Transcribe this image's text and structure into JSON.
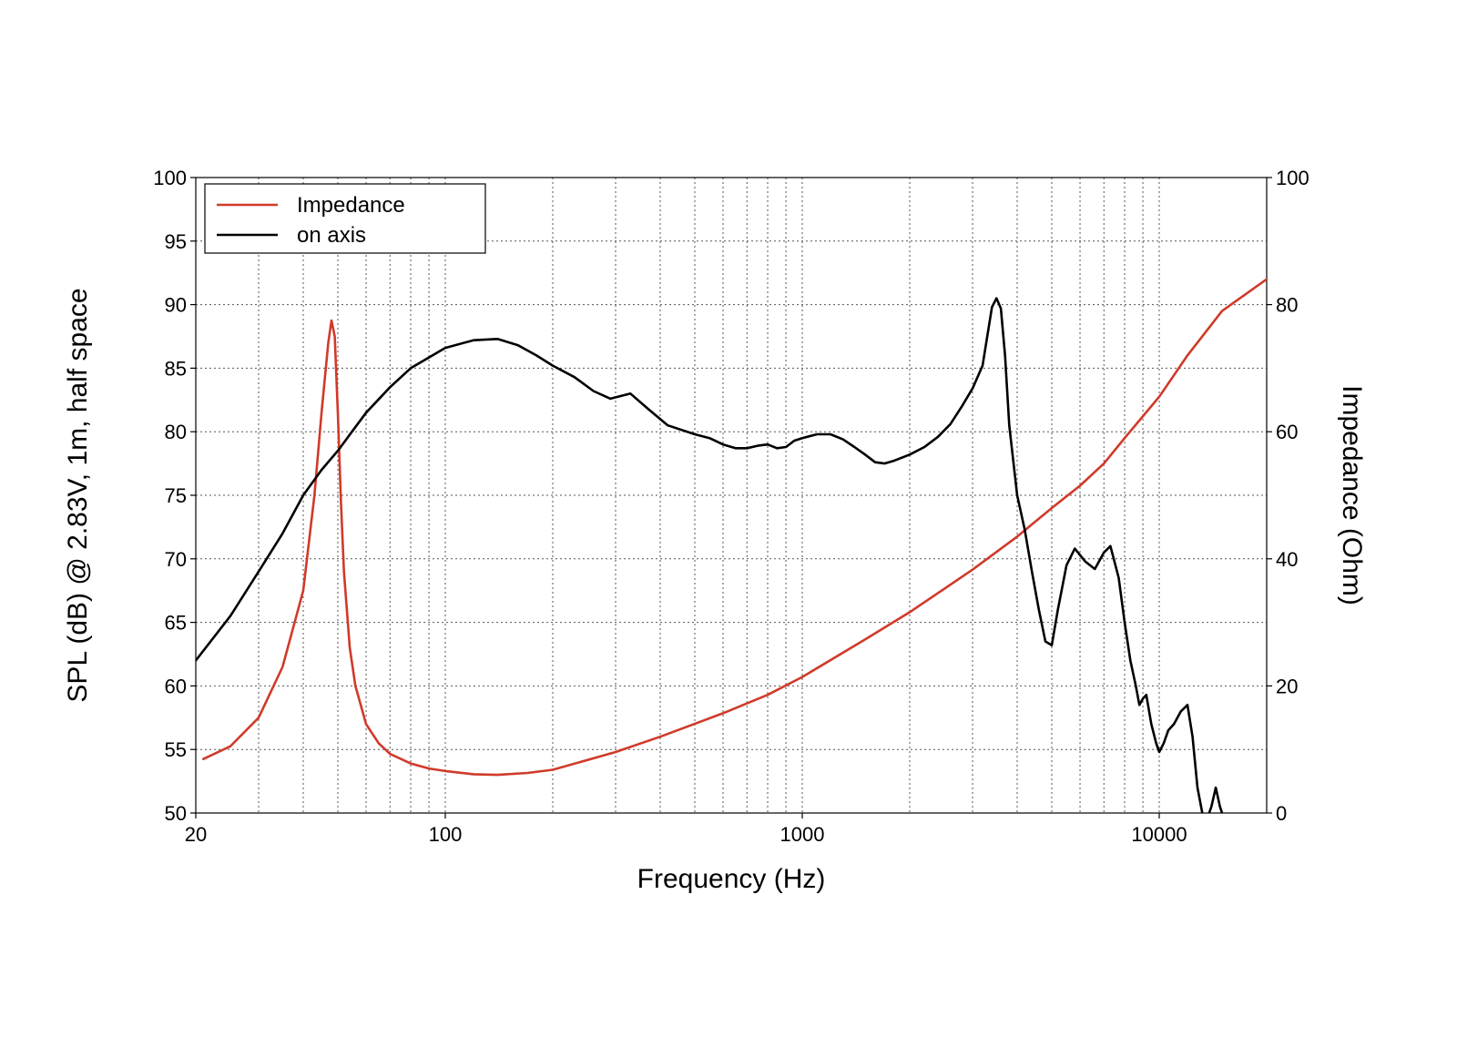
{
  "chart_data": {
    "type": "line",
    "xlabel": "Frequency (Hz)",
    "ylabel": "SPL (dB) @ 2.83V, 1m, half space",
    "y2label": "Impedance (Ohm)",
    "xscale": "log",
    "xlim": [
      20,
      20000
    ],
    "ylim": [
      50,
      100
    ],
    "y2lim": [
      0,
      100
    ],
    "x_ticks": [
      "20",
      "100",
      "1000",
      "10000"
    ],
    "x_tick_values": [
      20,
      100,
      1000,
      10000
    ],
    "y_ticks": [
      "50",
      "55",
      "60",
      "65",
      "70",
      "75",
      "80",
      "85",
      "90",
      "95",
      "100"
    ],
    "y2_ticks": [
      "0",
      "20",
      "40",
      "60",
      "80",
      "100"
    ],
    "grid": true,
    "legend_placement": "top-left",
    "series": [
      {
        "name": "Impedance",
        "axis": "right",
        "color": "#d03a2a",
        "x": [
          21,
          25,
          30,
          35,
          40,
          43,
          45,
          47,
          48,
          49,
          50,
          51,
          52,
          54,
          56,
          60,
          65,
          70,
          80,
          90,
          100,
          120,
          140,
          170,
          200,
          300,
          400,
          600,
          800,
          1000,
          1500,
          2000,
          3000,
          4000,
          5000,
          6000,
          7000,
          8000,
          10000,
          12000,
          15000,
          20000
        ],
        "y": [
          8.5,
          10.5,
          15,
          23,
          35,
          50,
          63,
          74,
          77.5,
          75,
          63,
          49,
          38,
          26,
          20,
          14,
          11,
          9.3,
          7.8,
          7,
          6.6,
          6.1,
          6.0,
          6.3,
          6.8,
          9.6,
          12,
          15.7,
          18.6,
          21.4,
          27.3,
          31.6,
          38.3,
          43.5,
          48,
          51.5,
          55,
          59,
          65.5,
          72,
          79,
          84
        ]
      },
      {
        "name": "on axis",
        "axis": "left",
        "color": "#000000",
        "x": [
          20,
          25,
          30,
          35,
          40,
          45,
          50,
          60,
          70,
          80,
          100,
          120,
          140,
          160,
          180,
          200,
          230,
          260,
          290,
          330,
          370,
          420,
          500,
          550,
          600,
          650,
          700,
          750,
          800,
          850,
          900,
          950,
          1000,
          1100,
          1200,
          1300,
          1400,
          1500,
          1600,
          1700,
          1800,
          2000,
          2200,
          2400,
          2600,
          2800,
          3000,
          3200,
          3400,
          3500,
          3600,
          3700,
          3800,
          4000,
          4200,
          4400,
          4600,
          4800,
          5000,
          5200,
          5500,
          5800,
          6200,
          6600,
          7000,
          7300,
          7700,
          8000,
          8300,
          8600,
          8800,
          9000,
          9200,
          9500,
          9800,
          10000,
          10300,
          10600,
          11000,
          11500,
          12000,
          12400,
          12800,
          13200,
          13600,
          14000,
          14400,
          14800,
          15200
        ],
        "y": [
          62,
          65.5,
          69,
          72,
          75,
          77,
          78.5,
          81.5,
          83.5,
          85,
          86.6,
          87.2,
          87.3,
          86.8,
          86,
          85.2,
          84.3,
          83.2,
          82.6,
          83.0,
          81.8,
          80.5,
          79.8,
          79.5,
          79.0,
          78.7,
          78.7,
          78.9,
          79.0,
          78.7,
          78.8,
          79.3,
          79.5,
          79.8,
          79.8,
          79.4,
          78.8,
          78.2,
          77.6,
          77.5,
          77.7,
          78.2,
          78.8,
          79.6,
          80.6,
          82.0,
          83.4,
          85.2,
          89.8,
          90.5,
          89.7,
          86.0,
          80.5,
          75.0,
          72.3,
          69.0,
          66.0,
          63.5,
          63.2,
          66.0,
          69.5,
          70.8,
          69.8,
          69.2,
          70.5,
          71.0,
          68.5,
          65.0,
          62.0,
          60.0,
          58.5,
          59.0,
          59.3,
          57.0,
          55.5,
          54.8,
          55.5,
          56.5,
          57.0,
          58.0,
          58.5,
          56.0,
          52.0,
          50.0,
          49.5,
          50.5,
          52.0,
          50.5,
          49.5
        ]
      }
    ]
  }
}
